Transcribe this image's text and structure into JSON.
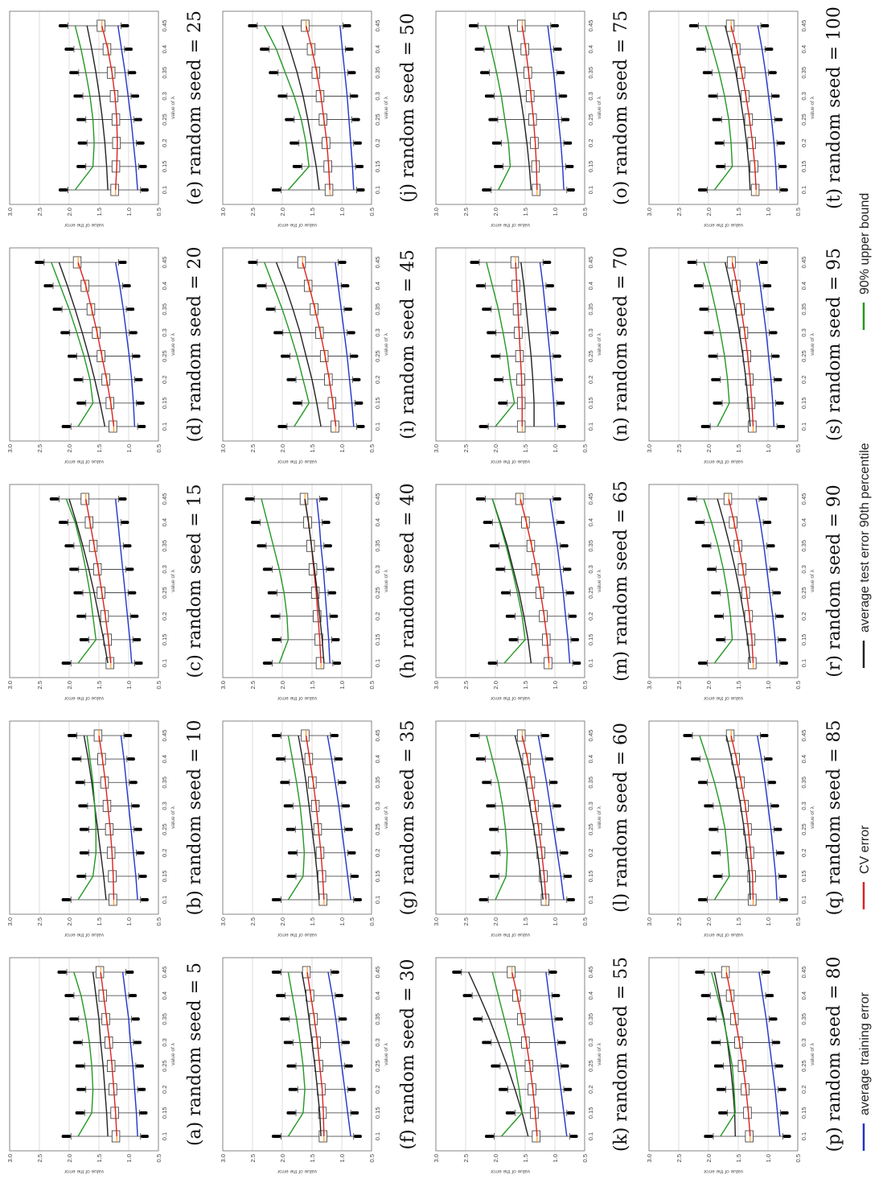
{
  "axis_labels": {
    "x": "value of λ",
    "y": "value of the error"
  },
  "x_ticks": [
    "0.1",
    "0.15",
    "0.2",
    "0.25",
    "0.3",
    "0.35",
    "0.4",
    "0.45"
  ],
  "y_ticks": [
    "0.5",
    "1.0",
    "1.5",
    "2.0",
    "2.5",
    "3.0"
  ],
  "legend": {
    "items": [
      {
        "label": "average training error",
        "color": "#2233cc"
      },
      {
        "label": "CV error",
        "color": "#dd2222"
      },
      {
        "label": "average test error 90th percentile",
        "color": "#222222"
      },
      {
        "label": "90% upper bound",
        "color": "#229922"
      }
    ]
  },
  "chart_data": {
    "type": "line",
    "panel_layout": "5 columns × 4 rows, figure rotated 90° counter-clockwise",
    "x": [
      0.1,
      0.15,
      0.2,
      0.25,
      0.3,
      0.35,
      0.4,
      0.45
    ],
    "ylim": [
      0.5,
      3.0
    ],
    "xlabel": "value of λ",
    "ylabel": "value of the error",
    "grid": true,
    "box_marker_color": "#ff8800",
    "panels": [
      {
        "caption": "(a)  random seed = 5",
        "series": {
          "training": [
            0.85,
            0.87,
            0.9,
            0.93,
            0.97,
            1.0,
            1.05,
            1.1
          ],
          "cv": [
            1.2,
            1.22,
            1.25,
            1.28,
            1.32,
            1.37,
            1.42,
            1.47
          ],
          "test90": [
            1.35,
            1.37,
            1.4,
            1.43,
            1.47,
            1.5,
            1.55,
            1.6
          ],
          "upper": [
            1.85,
            1.62,
            1.6,
            1.62,
            1.66,
            1.72,
            1.8,
            1.92
          ]
        }
      },
      {
        "caption": "(b)  random seed = 10",
        "series": {
          "training": [
            0.85,
            0.88,
            0.92,
            0.96,
            1.0,
            1.04,
            1.08,
            1.13
          ],
          "cv": [
            1.25,
            1.26,
            1.28,
            1.31,
            1.35,
            1.39,
            1.44,
            1.5
          ],
          "test90": [
            1.38,
            1.42,
            1.47,
            1.52,
            1.57,
            1.62,
            1.68,
            1.75
          ],
          "upper": [
            1.85,
            1.6,
            1.55,
            1.55,
            1.57,
            1.6,
            1.65,
            1.7
          ]
        }
      },
      {
        "caption": "(c)  random seed = 15",
        "series": {
          "training": [
            0.95,
            0.98,
            1.02,
            1.06,
            1.1,
            1.14,
            1.18,
            1.22
          ],
          "cv": [
            1.3,
            1.34,
            1.39,
            1.45,
            1.51,
            1.58,
            1.65,
            1.72
          ],
          "test90": [
            1.35,
            1.42,
            1.5,
            1.58,
            1.67,
            1.77,
            1.88,
            2.0
          ],
          "upper": [
            1.85,
            1.55,
            1.6,
            1.65,
            1.72,
            1.8,
            1.9,
            2.05
          ]
        }
      },
      {
        "caption": "(d)  random seed = 20",
        "series": {
          "training": [
            0.9,
            0.92,
            0.95,
            0.99,
            1.04,
            1.09,
            1.15,
            1.22
          ],
          "cv": [
            1.25,
            1.3,
            1.37,
            1.45,
            1.53,
            1.62,
            1.72,
            1.85
          ],
          "test90": [
            1.4,
            1.48,
            1.57,
            1.67,
            1.78,
            1.9,
            2.03,
            2.17
          ],
          "upper": [
            1.85,
            1.6,
            1.65,
            1.75,
            1.87,
            2.0,
            2.15,
            2.3
          ]
        }
      },
      {
        "caption": "(e)  random seed = 25",
        "series": {
          "training": [
            0.85,
            0.88,
            0.92,
            0.96,
            1.01,
            1.06,
            1.12,
            1.18
          ],
          "cv": [
            1.22,
            1.2,
            1.19,
            1.2,
            1.23,
            1.28,
            1.35,
            1.45
          ],
          "test90": [
            1.35,
            1.37,
            1.4,
            1.44,
            1.49,
            1.55,
            1.62,
            1.7
          ],
          "upper": [
            1.9,
            1.6,
            1.58,
            1.6,
            1.65,
            1.72,
            1.8,
            1.9
          ]
        }
      },
      {
        "caption": "(f)  random seed = 30",
        "series": {
          "training": [
            0.85,
            0.9,
            0.95,
            1.0,
            1.05,
            1.1,
            1.16,
            1.23
          ],
          "cv": [
            1.3,
            1.31,
            1.33,
            1.37,
            1.41,
            1.46,
            1.52,
            1.58
          ],
          "test90": [
            1.35,
            1.37,
            1.41,
            1.45,
            1.5,
            1.55,
            1.6,
            1.67
          ],
          "upper": [
            1.9,
            1.65,
            1.62,
            1.65,
            1.7,
            1.76,
            1.83,
            1.9
          ]
        }
      },
      {
        "caption": "(g)  random seed = 35",
        "series": {
          "training": [
            0.85,
            0.9,
            0.95,
            1.0,
            1.05,
            1.11,
            1.17,
            1.24
          ],
          "cv": [
            1.3,
            1.32,
            1.35,
            1.39,
            1.43,
            1.48,
            1.54,
            1.6
          ],
          "test90": [
            1.38,
            1.41,
            1.45,
            1.5,
            1.55,
            1.6,
            1.66,
            1.73
          ],
          "upper": [
            1.9,
            1.65,
            1.63,
            1.66,
            1.7,
            1.76,
            1.83,
            1.9
          ]
        }
      },
      {
        "caption": "(h)  random seed = 40",
        "series": {
          "training": [
            1.2,
            1.22,
            1.25,
            1.28,
            1.31,
            1.35,
            1.38,
            1.42
          ],
          "cv": [
            1.35,
            1.37,
            1.4,
            1.43,
            1.47,
            1.51,
            1.56,
            1.62
          ],
          "test90": [
            1.3,
            1.33,
            1.37,
            1.41,
            1.46,
            1.51,
            1.56,
            1.62
          ],
          "upper": [
            2.05,
            1.9,
            1.92,
            1.97,
            2.05,
            2.15,
            2.25,
            2.35
          ]
        }
      },
      {
        "caption": "(i)  random seed = 45",
        "series": {
          "training": [
            0.8,
            0.83,
            0.87,
            0.91,
            0.96,
            1.01,
            1.06,
            1.11
          ],
          "cv": [
            1.1,
            1.15,
            1.21,
            1.28,
            1.36,
            1.45,
            1.55,
            1.66
          ],
          "test90": [
            1.35,
            1.42,
            1.5,
            1.6,
            1.7,
            1.82,
            1.95,
            2.1
          ],
          "upper": [
            1.8,
            1.55,
            1.65,
            1.75,
            1.87,
            2.0,
            2.15,
            2.3
          ]
        }
      },
      {
        "caption": "(j)  random seed = 50",
        "series": {
          "training": [
            0.8,
            0.82,
            0.85,
            0.88,
            0.91,
            0.95,
            0.99,
            1.03
          ],
          "cv": [
            1.2,
            1.22,
            1.25,
            1.3,
            1.35,
            1.42,
            1.5,
            1.6
          ],
          "test90": [
            1.38,
            1.43,
            1.5,
            1.57,
            1.65,
            1.75,
            1.87,
            2.0
          ],
          "upper": [
            1.9,
            1.55,
            1.6,
            1.68,
            1.8,
            1.95,
            2.1,
            2.3
          ]
        }
      },
      {
        "caption": "(k)  random seed = 55",
        "series": {
          "training": [
            0.8,
            0.85,
            0.9,
            0.95,
            1.0,
            1.05,
            1.1,
            1.15
          ],
          "cv": [
            1.3,
            1.33,
            1.37,
            1.42,
            1.48,
            1.55,
            1.63,
            1.72
          ],
          "test90": [
            1.45,
            1.55,
            1.67,
            1.8,
            1.95,
            2.1,
            2.27,
            2.45
          ],
          "upper": [
            1.9,
            1.55,
            1.6,
            1.67,
            1.75,
            1.85,
            1.95,
            2.05
          ]
        }
      },
      {
        "caption": "(l)  random seed = 60",
        "series": {
          "training": [
            0.85,
            0.9,
            0.96,
            1.02,
            1.08,
            1.14,
            1.21,
            1.28
          ],
          "cv": [
            1.15,
            1.18,
            1.22,
            1.27,
            1.33,
            1.39,
            1.46,
            1.55
          ],
          "test90": [
            1.2,
            1.24,
            1.29,
            1.35,
            1.42,
            1.49,
            1.57,
            1.67
          ],
          "upper": [
            2.0,
            1.82,
            1.8,
            1.83,
            1.88,
            1.95,
            2.05,
            2.15
          ]
        }
      },
      {
        "caption": "(m)  random seed = 65",
        "series": {
          "training": [
            0.75,
            0.78,
            0.82,
            0.86,
            0.91,
            0.96,
            1.02,
            1.08
          ],
          "cv": [
            1.1,
            1.13,
            1.18,
            1.24,
            1.31,
            1.39,
            1.48,
            1.58
          ],
          "test90": [
            1.4,
            1.45,
            1.52,
            1.6,
            1.7,
            1.8,
            1.92,
            2.05
          ],
          "upper": [
            1.85,
            1.5,
            1.55,
            1.63,
            1.72,
            1.82,
            1.93,
            2.05
          ]
        }
      },
      {
        "caption": "(n)  random seed = 70",
        "series": {
          "training": [
            1.0,
            1.02,
            1.05,
            1.08,
            1.12,
            1.16,
            1.2,
            1.25
          ],
          "cv": [
            1.55,
            1.55,
            1.56,
            1.58,
            1.6,
            1.62,
            1.64,
            1.66
          ],
          "test90": [
            1.35,
            1.35,
            1.37,
            1.4,
            1.44,
            1.48,
            1.52,
            1.57
          ],
          "upper": [
            2.0,
            1.68,
            1.75,
            1.8,
            1.87,
            1.95,
            2.05,
            2.15
          ]
        }
      },
      {
        "caption": "(o)  random seed = 75",
        "series": {
          "training": [
            0.85,
            0.87,
            0.9,
            0.94,
            0.98,
            1.02,
            1.07,
            1.12
          ],
          "cv": [
            1.3,
            1.31,
            1.33,
            1.36,
            1.4,
            1.44,
            1.49,
            1.55
          ],
          "test90": [
            1.4,
            1.43,
            1.47,
            1.52,
            1.58,
            1.64,
            1.71,
            1.78
          ],
          "upper": [
            1.95,
            1.75,
            1.78,
            1.84,
            1.9,
            1.98,
            2.07,
            2.17
          ]
        }
      },
      {
        "caption": "(p)  random seed = 80",
        "series": {
          "training": [
            0.8,
            0.84,
            0.88,
            0.93,
            0.98,
            1.03,
            1.09,
            1.15
          ],
          "cv": [
            1.3,
            1.33,
            1.37,
            1.42,
            1.48,
            1.55,
            1.62,
            1.7
          ],
          "test90": [
            1.55,
            1.56,
            1.59,
            1.63,
            1.68,
            1.74,
            1.82,
            1.9
          ],
          "upper": [
            1.8,
            1.55,
            1.57,
            1.6,
            1.67,
            1.75,
            1.85,
            1.95
          ]
        }
      },
      {
        "caption": "(q)  random seed = 85",
        "series": {
          "training": [
            0.85,
            0.87,
            0.91,
            0.95,
            1.0,
            1.05,
            1.11,
            1.18
          ],
          "cv": [
            1.25,
            1.26,
            1.29,
            1.33,
            1.38,
            1.45,
            1.53,
            1.62
          ],
          "test90": [
            1.3,
            1.31,
            1.35,
            1.4,
            1.46,
            1.53,
            1.61,
            1.7
          ],
          "upper": [
            1.9,
            1.65,
            1.68,
            1.72,
            1.8,
            1.9,
            2.02,
            2.15
          ]
        }
      },
      {
        "caption": "(r)  random seed = 90",
        "series": {
          "training": [
            0.85,
            0.88,
            0.92,
            0.97,
            1.02,
            1.07,
            1.13,
            1.2
          ],
          "cv": [
            1.25,
            1.27,
            1.31,
            1.36,
            1.42,
            1.49,
            1.57,
            1.66
          ],
          "test90": [
            1.3,
            1.34,
            1.4,
            1.47,
            1.55,
            1.64,
            1.74,
            1.85
          ],
          "upper": [
            1.9,
            1.6,
            1.63,
            1.68,
            1.75,
            1.84,
            1.95,
            2.08
          ]
        }
      },
      {
        "caption": "(s)  random seed = 95",
        "series": {
          "training": [
            0.9,
            0.92,
            0.95,
            0.99,
            1.03,
            1.08,
            1.13,
            1.19
          ],
          "cv": [
            1.25,
            1.27,
            1.3,
            1.34,
            1.39,
            1.45,
            1.52,
            1.6
          ],
          "test90": [
            1.3,
            1.33,
            1.37,
            1.42,
            1.48,
            1.55,
            1.63,
            1.72
          ],
          "upper": [
            1.85,
            1.65,
            1.68,
            1.73,
            1.8,
            1.88,
            1.97,
            2.08
          ]
        }
      },
      {
        "caption": "(t)  random seed = 100",
        "series": {
          "training": [
            0.85,
            0.87,
            0.9,
            0.94,
            0.99,
            1.04,
            1.1,
            1.17
          ],
          "cv": [
            1.2,
            1.22,
            1.26,
            1.31,
            1.37,
            1.44,
            1.52,
            1.62
          ],
          "test90": [
            1.3,
            1.32,
            1.36,
            1.41,
            1.47,
            1.54,
            1.62,
            1.72
          ],
          "upper": [
            1.9,
            1.6,
            1.62,
            1.66,
            1.73,
            1.82,
            1.93,
            2.05
          ]
        }
      }
    ]
  }
}
